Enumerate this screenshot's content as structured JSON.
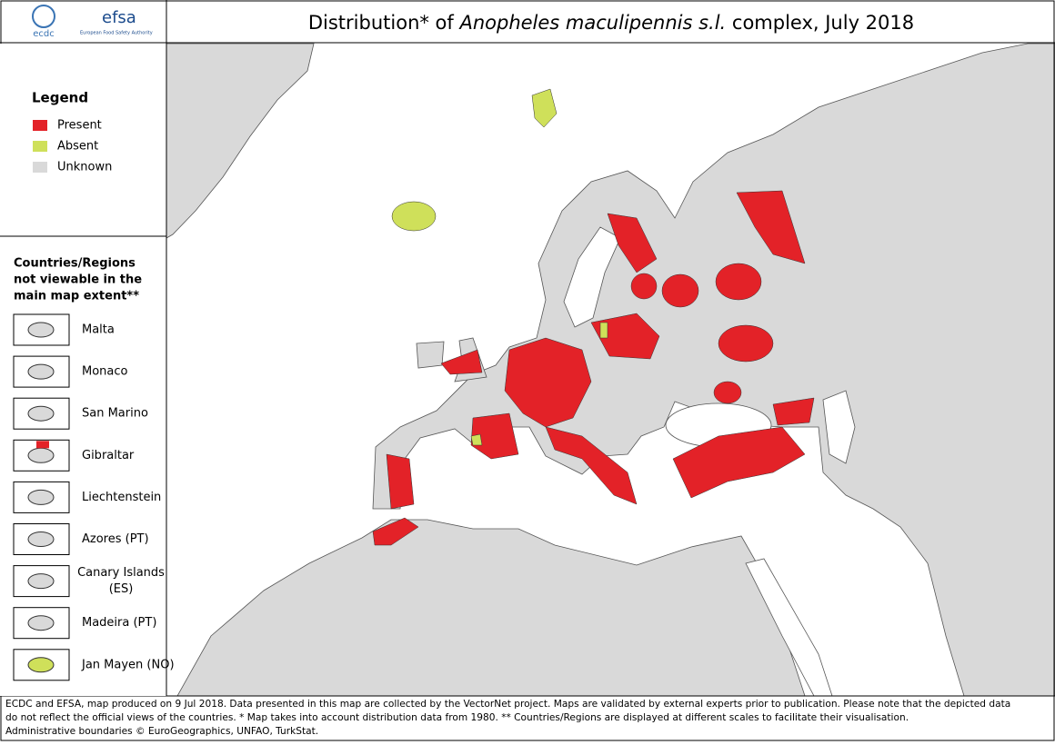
{
  "header": {
    "logo_ecdc": "ecdc",
    "logo_efsa": "efsa",
    "logo_efsa_sub": "European Food Safety Authority",
    "title_start": "Distribution* of ",
    "title_species": "Anopheles maculipennis s.l.",
    "title_end": " complex, July 2018"
  },
  "legend": {
    "title": "Legend",
    "items": [
      {
        "label": "Present",
        "color": "#e32228"
      },
      {
        "label": "Absent",
        "color": "#cfe05a"
      },
      {
        "label": "Unknown",
        "color": "#d9d9d9"
      }
    ]
  },
  "insets": {
    "title": [
      "Countries/Regions",
      "not viewable in the",
      "main map extent**"
    ],
    "items": [
      [
        "Malta"
      ],
      [
        "Monaco"
      ],
      [
        "San Marino"
      ],
      [
        "Gibraltar"
      ],
      [
        "Liechtenstein"
      ],
      [
        "Azores (PT)"
      ],
      [
        "Canary Islands",
        "(ES)"
      ],
      [
        "Madeira (PT)"
      ],
      [
        "Jan Mayen (NO)"
      ]
    ]
  },
  "footer": [
    "ECDC and EFSA, map produced on 9 Jul 2018. Data presented in this map are collected by the VectorNet project. Maps are validated by external experts prior to publication. Please note that the depicted data",
    "do not reflect the official views of the countries. * Map takes into account distribution data from 1980. ** Countries/Regions are displayed at different scales to facilitate their visualisation.",
    "Administrative boundaries © EuroGeographics, UNFAO, TurkStat."
  ]
}
